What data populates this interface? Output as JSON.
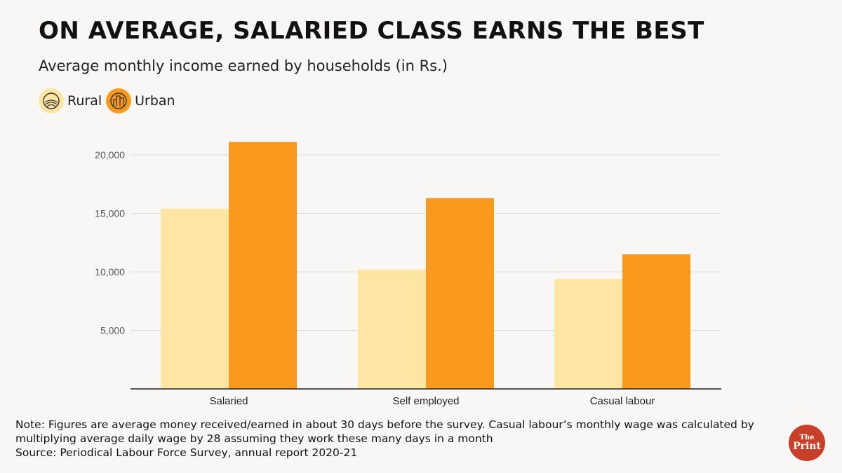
{
  "header": {
    "title": "ON AVERAGE, SALARIED CLASS EARNS THE BEST",
    "subtitle": "Average monthly income earned by households (in Rs.)"
  },
  "legend": {
    "rural_label": "Rural",
    "urban_label": "Urban",
    "rural_icon": "field-icon",
    "urban_icon": "city-icon"
  },
  "colors": {
    "rural": "#fde6a3",
    "urban": "#f99a1e",
    "axis": "#222222",
    "grid": "#dddddd"
  },
  "chart_data": {
    "type": "bar",
    "categories": [
      "Salaried",
      "Self employed",
      "Casual labour"
    ],
    "series": [
      {
        "name": "Rural",
        "values": [
          15400,
          10200,
          9400
        ]
      },
      {
        "name": "Urban",
        "values": [
          21100,
          16300,
          11500
        ]
      }
    ],
    "yticks": [
      "5,000",
      "10,000",
      "15,000",
      "20,000"
    ],
    "ytick_values": [
      5000,
      10000,
      15000,
      20000
    ],
    "ylim": [
      0,
      22000
    ],
    "grid": true,
    "legend_position": "top-left"
  },
  "notes": {
    "line1": "Note: Figures are average money received/earned in about 30 days before the survey. Casual labour’s monthly wage was calculated by",
    "line2": "multiplying average daily wage by 28 assuming they work these many days in a month",
    "line3": "Source: Periodical Labour Force Survey, annual report 2020-21"
  },
  "logo": {
    "top": "The",
    "bottom": "Print"
  }
}
